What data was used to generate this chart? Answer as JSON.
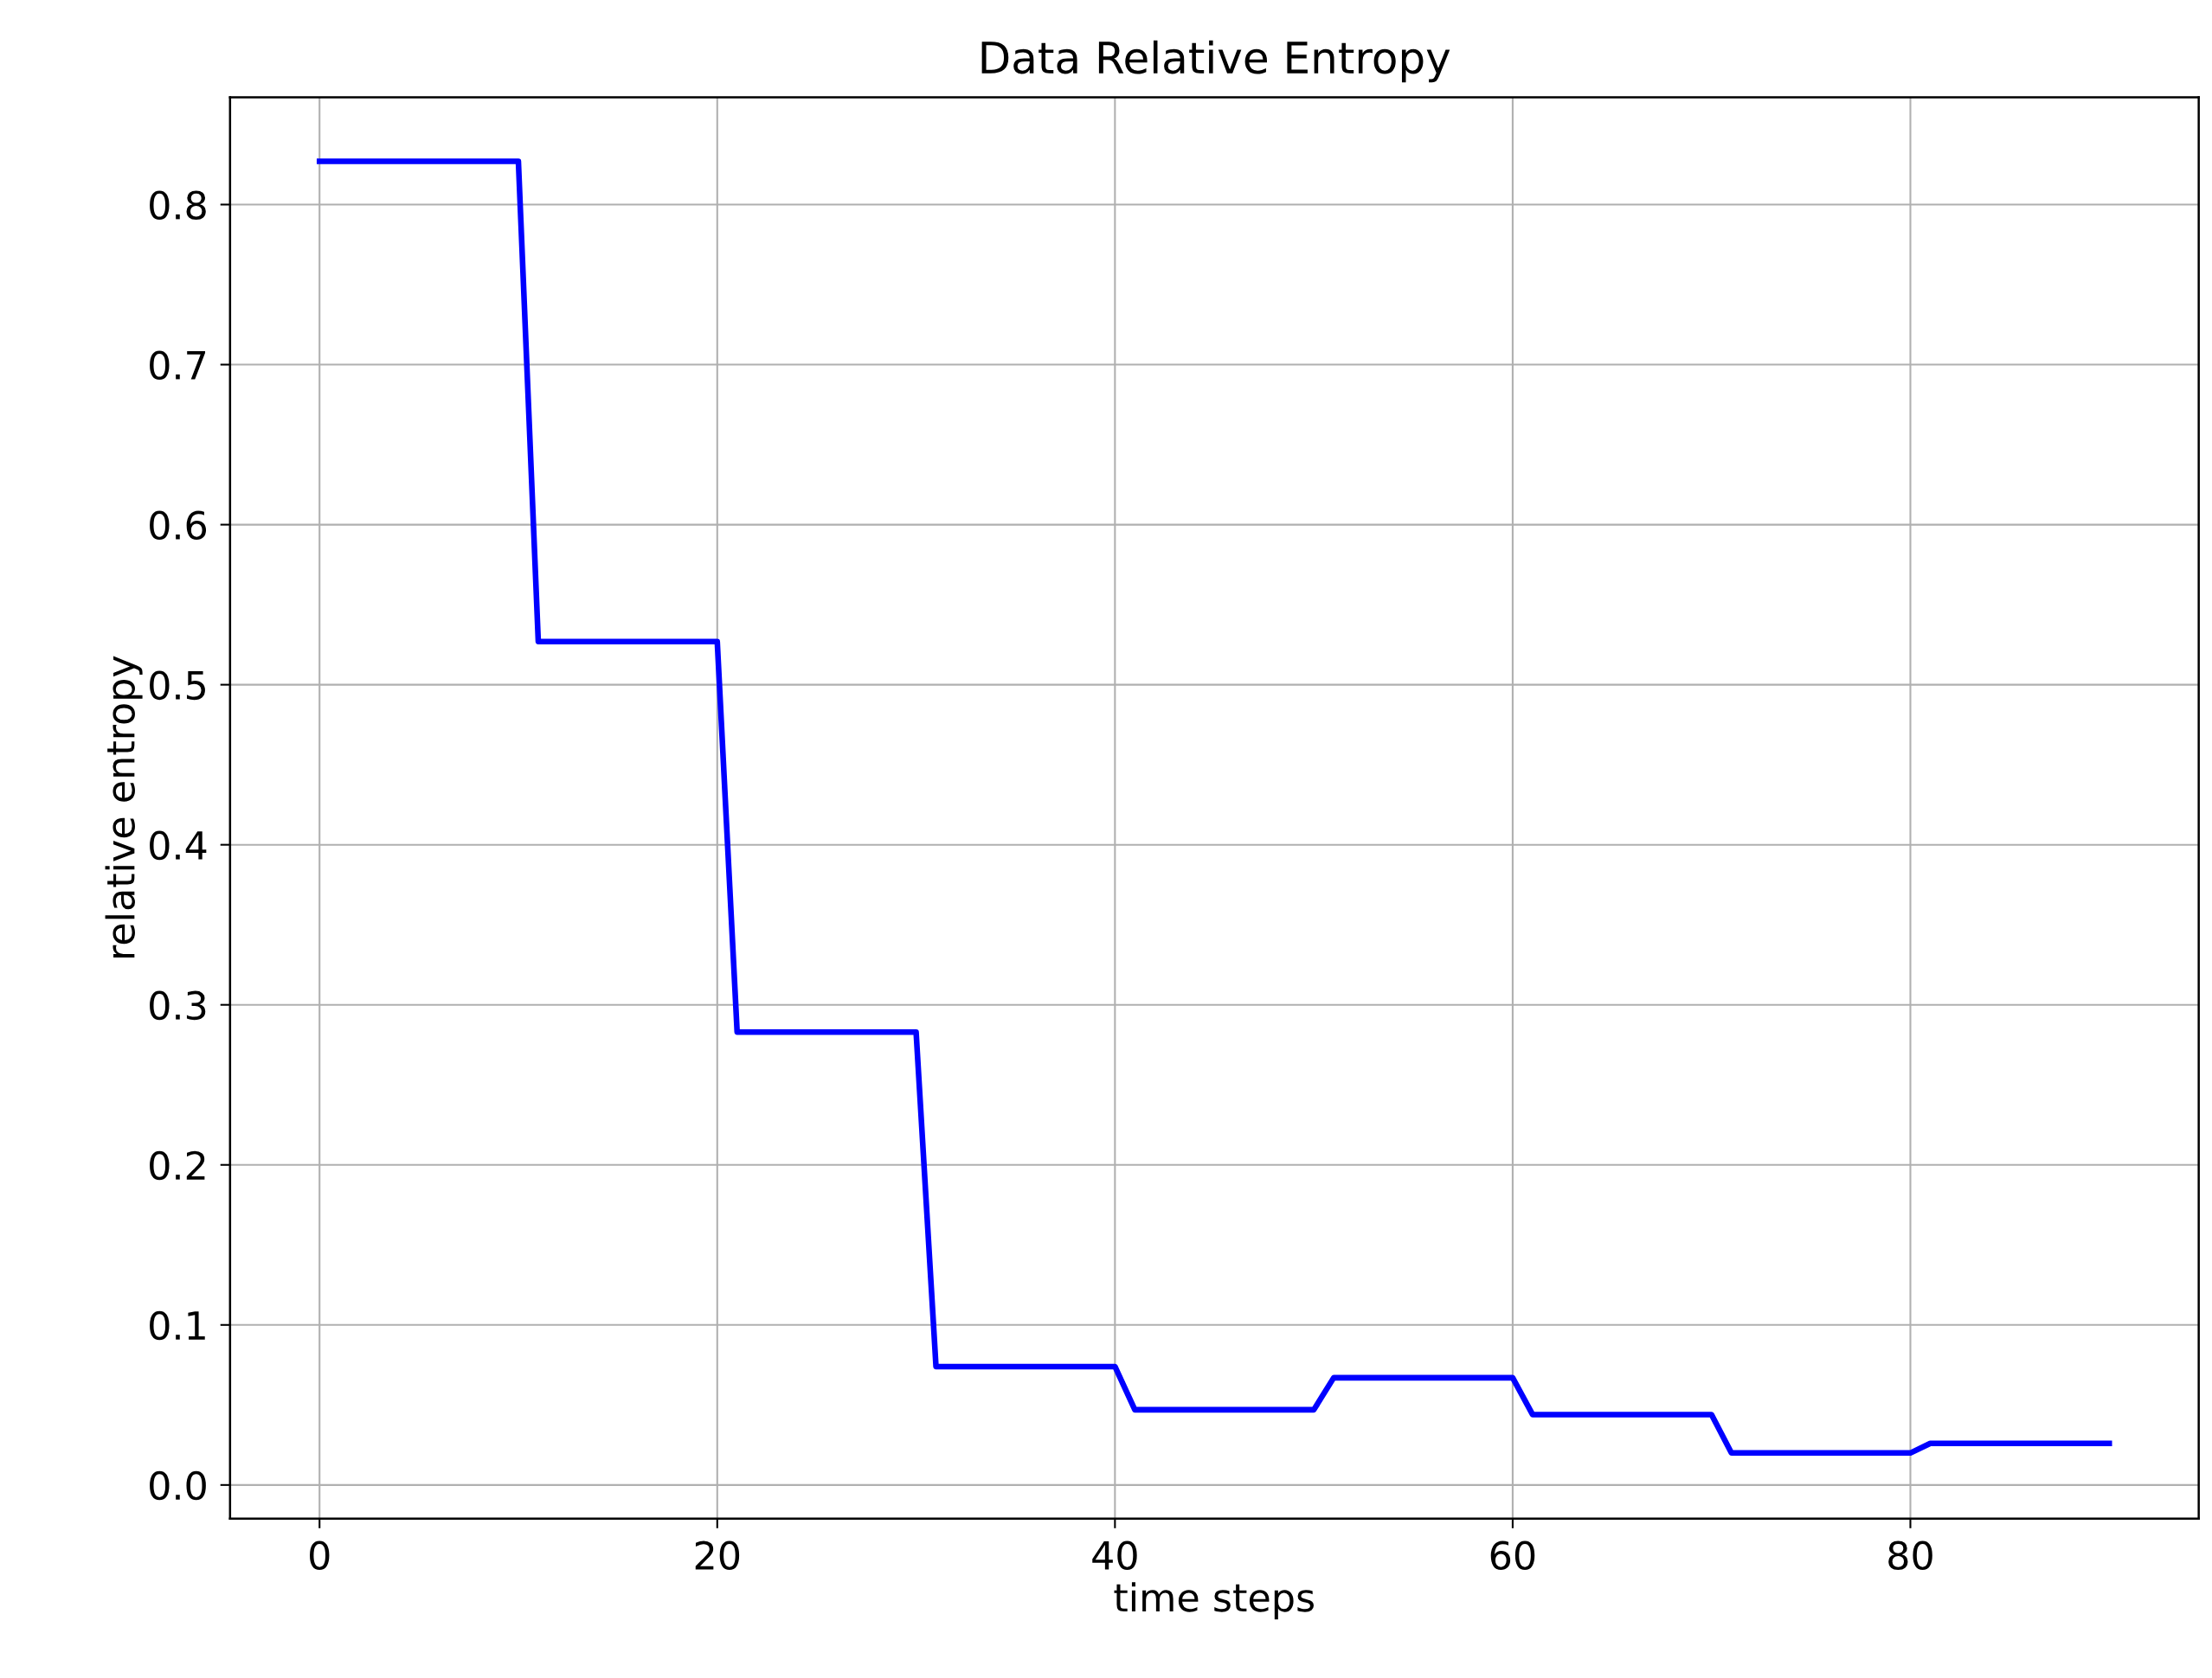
{
  "chart_data": {
    "type": "line",
    "title": "Data Relative Entropy",
    "xlabel": "time steps",
    "ylabel": "relative entropy",
    "x": [
      0,
      10,
      11,
      20,
      21,
      30,
      31,
      40,
      41,
      50,
      51,
      60,
      61,
      70,
      71,
      80,
      81,
      90
    ],
    "series": [
      {
        "color": "#0000ff",
        "values": [
          0.827,
          0.827,
          0.527,
          0.527,
          0.283,
          0.283,
          0.074,
          0.074,
          0.047,
          0.047,
          0.067,
          0.067,
          0.044,
          0.044,
          0.02,
          0.02,
          0.026,
          0.026
        ]
      }
    ],
    "xlim": [
      -4.5,
      94.5
    ],
    "ylim": [
      -0.021,
      0.867
    ],
    "xticks": [
      0,
      20,
      40,
      60,
      80
    ],
    "yticks": [
      {
        "value": 0,
        "label": "0.0"
      },
      0.1,
      0.2,
      0.3,
      0.4,
      0.5,
      0.6,
      0.7,
      0.8
    ],
    "grid": true,
    "marker": "none",
    "line_style": "solid"
  }
}
